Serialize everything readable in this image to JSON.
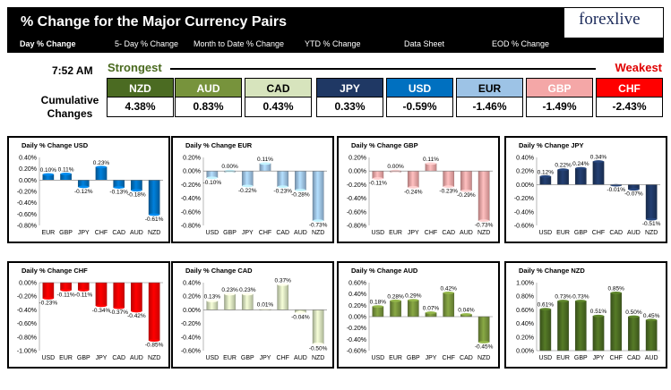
{
  "header": {
    "title": "% Change for the Major Currency Pairs",
    "logo": "forexlive"
  },
  "tabs": [
    "Day % Change",
    "5- Day % Change",
    "Month to Date % Change",
    "YTD % Change",
    "Data Sheet",
    "EOD % Change"
  ],
  "time": "7:52 AM",
  "strongest_label": "Strongest",
  "weakest_label": "Weakest",
  "cumulative_label": "Cumulative Changes",
  "currencies": [
    {
      "code": "NZD",
      "value": "4.38%",
      "color": "#4b6b22",
      "dark": false
    },
    {
      "code": "AUD",
      "value": "0.83%",
      "color": "#77933c",
      "dark": false
    },
    {
      "code": "CAD",
      "value": "0.43%",
      "color": "#d7e4bd",
      "dark": true
    },
    {
      "code": "JPY",
      "value": "0.33%",
      "color": "#1f3864",
      "dark": false
    },
    {
      "code": "USD",
      "value": "-0.59%",
      "color": "#0070c0",
      "dark": false
    },
    {
      "code": "EUR",
      "value": "-1.46%",
      "color": "#9dc3e6",
      "dark": true
    },
    {
      "code": "GBP",
      "value": "-1.49%",
      "color": "#f4a7a7",
      "dark": false
    },
    {
      "code": "CHF",
      "value": "-2.43%",
      "color": "#ff0000",
      "dark": false
    }
  ],
  "chart_data": [
    {
      "type": "bar",
      "title": "Daily % Change USD",
      "color": "#0070c0",
      "categories": [
        "EUR",
        "GBP",
        "JPY",
        "CHF",
        "CAD",
        "AUD",
        "NZD"
      ],
      "values": [
        0.1,
        0.11,
        -0.12,
        0.23,
        -0.13,
        -0.18,
        -0.61
      ],
      "labels": [
        "0.10%",
        "0.11%",
        "-0.12%",
        "0.23%",
        "-0.13%",
        "-0.18%",
        "-0.61%"
      ],
      "ylim": [
        -0.8,
        0.4
      ],
      "ticks": [
        "0.40%",
        "0.20%",
        "0.00%",
        "-0.20%",
        "-0.40%",
        "-0.60%",
        "-0.80%"
      ]
    },
    {
      "type": "bar",
      "title": "Daily % Change EUR",
      "color": "#9dc3e6",
      "categories": [
        "USD",
        "GBP",
        "JPY",
        "CHF",
        "CAD",
        "AUD",
        "NZD"
      ],
      "values": [
        -0.1,
        0.0,
        -0.22,
        0.11,
        -0.23,
        -0.28,
        -0.73
      ],
      "labels": [
        "-0.10%",
        "0.00%",
        "-0.22%",
        "0.11%",
        "-0.23%",
        "-0.28%",
        "-0.73%"
      ],
      "ylim": [
        -0.8,
        0.2
      ],
      "ticks": [
        "0.20%",
        "0.00%",
        "-0.20%",
        "-0.40%",
        "-0.60%",
        "-0.80%"
      ]
    },
    {
      "type": "bar",
      "title": "Daily % Change GBP",
      "color": "#f4a7a7",
      "categories": [
        "USD",
        "EUR",
        "JPY",
        "CHF",
        "CAD",
        "AUD",
        "NZD"
      ],
      "values": [
        -0.11,
        0.0,
        -0.24,
        0.11,
        -0.23,
        -0.29,
        -0.73
      ],
      "labels": [
        "-0.11%",
        "0.00%",
        "-0.24%",
        "0.11%",
        "-0.23%",
        "-0.29%",
        "-0.73%"
      ],
      "ylim": [
        -0.8,
        0.2
      ],
      "ticks": [
        "0.20%",
        "0.00%",
        "-0.20%",
        "-0.40%",
        "-0.60%",
        "-0.80%"
      ]
    },
    {
      "type": "bar",
      "title": "Daily % Change JPY",
      "color": "#1f3864",
      "categories": [
        "USD",
        "EUR",
        "GBP",
        "CHF",
        "CAD",
        "AUD",
        "NZD"
      ],
      "values": [
        0.12,
        0.22,
        0.24,
        0.34,
        -0.01,
        -0.07,
        -0.51
      ],
      "labels": [
        "0.12%",
        "0.22%",
        "0.24%",
        "0.34%",
        "-0.01%",
        "-0.07%",
        "-0.51%"
      ],
      "ylim": [
        -0.6,
        0.4
      ],
      "ticks": [
        "0.40%",
        "0.20%",
        "0.00%",
        "-0.20%",
        "-0.40%",
        "-0.60%"
      ]
    },
    {
      "type": "bar",
      "title": "Daily % Change CHF",
      "color": "#ff0000",
      "categories": [
        "USD",
        "EUR",
        "GBP",
        "JPY",
        "CAD",
        "AUD",
        "NZD"
      ],
      "values": [
        -0.23,
        -0.11,
        -0.11,
        -0.34,
        -0.37,
        -0.42,
        -0.85
      ],
      "labels": [
        "-0.23%",
        "-0.11%",
        "-0.11%",
        "-0.34%",
        "-0.37%",
        "-0.42%",
        "-0.85%"
      ],
      "ylim": [
        -1.0,
        0.0
      ],
      "ticks": [
        "0.00%",
        "-0.20%",
        "-0.40%",
        "-0.60%",
        "-0.80%",
        "-1.00%"
      ]
    },
    {
      "type": "bar",
      "title": "Daily % Change CAD",
      "color": "#d7e4bd",
      "categories": [
        "USD",
        "EUR",
        "GBP",
        "JPY",
        "CHF",
        "AUD",
        "NZD"
      ],
      "values": [
        0.13,
        0.23,
        0.23,
        0.01,
        0.37,
        -0.04,
        -0.5
      ],
      "labels": [
        "0.13%",
        "0.23%",
        "0.23%",
        "0.01%",
        "0.37%",
        "-0.04%",
        "-0.50%"
      ],
      "ylim": [
        -0.6,
        0.4
      ],
      "ticks": [
        "0.40%",
        "0.20%",
        "0.00%",
        "-0.20%",
        "-0.40%",
        "-0.60%"
      ]
    },
    {
      "type": "bar",
      "title": "Daily % Change AUD",
      "color": "#77933c",
      "categories": [
        "USD",
        "EUR",
        "GBP",
        "JPY",
        "CHF",
        "CAD",
        "NZD"
      ],
      "values": [
        0.18,
        0.28,
        0.29,
        0.07,
        0.42,
        0.04,
        -0.45
      ],
      "labels": [
        "0.18%",
        "0.28%",
        "0.29%",
        "0.07%",
        "0.42%",
        "0.04%",
        "-0.45%"
      ],
      "ylim": [
        -0.6,
        0.6
      ],
      "ticks": [
        "0.60%",
        "0.40%",
        "0.20%",
        "0.00%",
        "-0.20%",
        "-0.40%",
        "-0.60%"
      ]
    },
    {
      "type": "bar",
      "title": "Daily % Change NZD",
      "color": "#4b6b22",
      "categories": [
        "USD",
        "EUR",
        "GBP",
        "JPY",
        "CHF",
        "CAD",
        "AUD"
      ],
      "values": [
        0.61,
        0.73,
        0.73,
        0.51,
        0.85,
        0.5,
        0.45
      ],
      "labels": [
        "0.61%",
        "0.73%",
        "0.73%",
        "0.51%",
        "0.85%",
        "0.50%",
        "0.45%"
      ],
      "ylim": [
        0.0,
        1.0
      ],
      "ticks": [
        "1.00%",
        "0.80%",
        "0.60%",
        "0.40%",
        "0.20%",
        "0.00%"
      ]
    }
  ]
}
